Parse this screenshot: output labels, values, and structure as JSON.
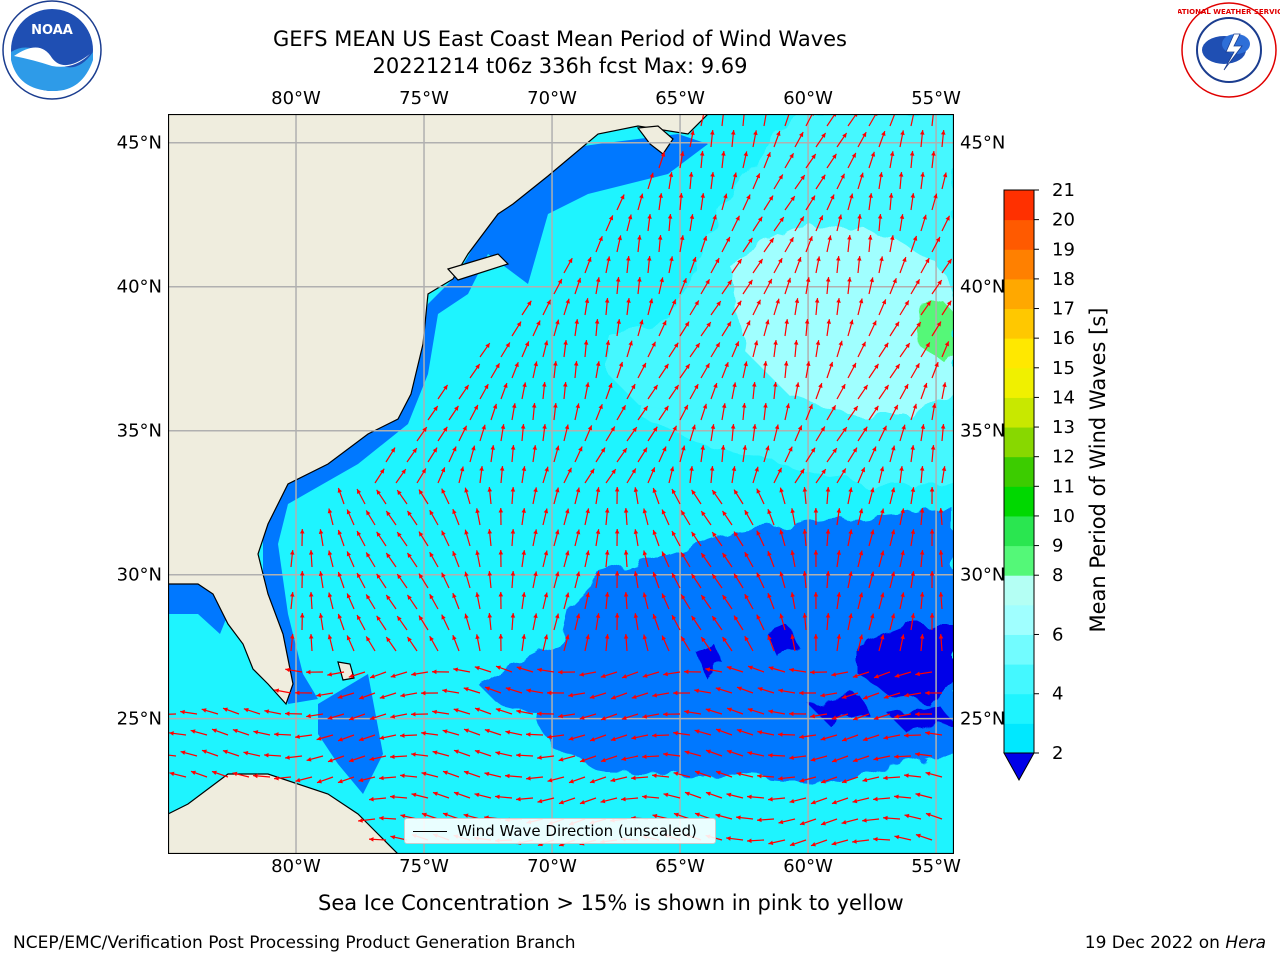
{
  "header": {
    "title_line1": "GEFS MEAN US East Coast Mean Period of Wind Waves",
    "title_line2": "20221214 t06z 336h fcst   Max: 9.69"
  },
  "logos": {
    "left": "noaa-logo",
    "left_text": "NOAA",
    "left_ring_text": "NATIONAL OCEANIC AND ATMOSPHERIC ADMINISTRATION · U.S. DEPARTMENT OF COMMERCE",
    "right": "nws-logo",
    "right_ring_text": "NATIONAL WEATHER SERVICE"
  },
  "axes": {
    "lon_ticks": [
      "80°W",
      "75°W",
      "70°W",
      "65°W",
      "60°W",
      "55°W"
    ],
    "lat_ticks": [
      "45°N",
      "40°N",
      "35°N",
      "30°N",
      "25°N"
    ],
    "lon_range": [
      -85,
      -54.3
    ],
    "lat_range": [
      20.3,
      46.0
    ]
  },
  "map": {
    "land_color": "#efedde",
    "coastline_color": "#000000",
    "grid_color": "#b0b0b0",
    "arrow_color": "#ff0000",
    "field_name": "Mean Period of Wind Waves",
    "field_units": "s",
    "max_value": 9.69,
    "regions": [
      {
        "range": "2-4 s",
        "area": "southern Sargasso Sea ~22-32°N, 54-72°W and narrow coastal strips"
      },
      {
        "range": "<2 s",
        "area": "small patches near 25-28°N, 56-66°W"
      },
      {
        "range": "4-6 s",
        "area": "most of the open ocean"
      },
      {
        "range": "6-8 s",
        "area": "north of ~33°N east of 68°W"
      },
      {
        "range": "8-9 s",
        "area": "near 37-40°N, 57-60°W"
      },
      {
        "range": "9-10 s",
        "area": "small patch near 38-39°N, 54-55°W"
      }
    ]
  },
  "legend": {
    "label": "Wind Wave Direction (unscaled)"
  },
  "colorbar": {
    "label": "Mean Period of Wind Waves [s]",
    "ticks": [
      "2",
      "4",
      "6",
      "8",
      "9",
      "10",
      "11",
      "12",
      "13",
      "14",
      "15",
      "16",
      "17",
      "18",
      "19",
      "20",
      "21"
    ],
    "levels": [
      2,
      3,
      4,
      5,
      6,
      7,
      8,
      9,
      10,
      11,
      12,
      13,
      14,
      15,
      16,
      17,
      18,
      19,
      20,
      21
    ],
    "colors": [
      "#0050ff",
      "#0078ff",
      "#00e8ff",
      "#1ef4ff",
      "#44f8ff",
      "#72fcff",
      "#a0ffff",
      "#b4fff4",
      "#54f878",
      "#2ae650",
      "#00d800",
      "#3ccc00",
      "#88d800",
      "#c8e800",
      "#f0f000",
      "#ffe800",
      "#ffc800",
      "#ffa800",
      "#ff8000",
      "#ff5a00",
      "#ff3000",
      "#ff0000"
    ],
    "under_color": "#0000e8"
  },
  "footer": {
    "note": "Sea Ice Concentration > 15% is shown in pink to yellow",
    "credit": "NCEP/EMC/Verification Post Processing Product Generation Branch",
    "date": "19 Dec 2022 on",
    "host": "Hera"
  }
}
